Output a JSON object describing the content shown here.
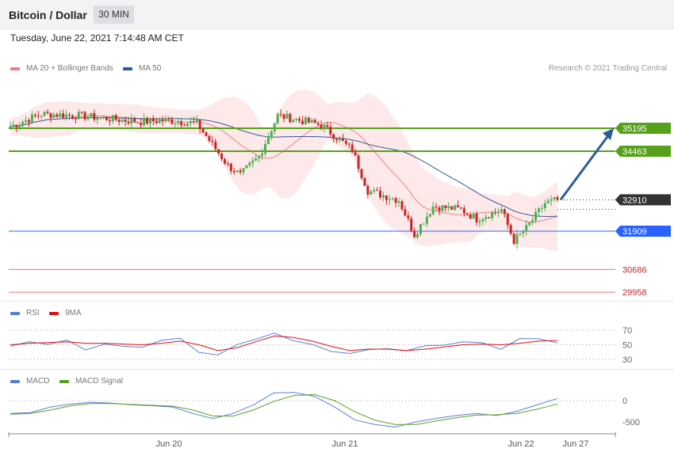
{
  "header": {
    "title": "Bitcoin / Dollar",
    "interval": "30 MIN"
  },
  "timestamp": "Tuesday, June 22, 2021 7:14:48 AM CET",
  "credit": "Research © 2021 Trading Central",
  "legend_main": [
    {
      "label": "MA 20 + Bollinger Bands",
      "color": "#f08080"
    },
    {
      "label": "MA 50",
      "color": "#2d5b9a"
    }
  ],
  "legend_rsi": [
    {
      "label": "RSI",
      "color": "#5b7fd6"
    },
    {
      "label": "9MA",
      "color": "#dd1111"
    }
  ],
  "legend_macd": [
    {
      "label": "MACD",
      "color": "#5b7fd6"
    },
    {
      "label": "MACD Signal",
      "color": "#5aa020"
    }
  ],
  "colors": {
    "up": "#4caf50",
    "down": "#c62828",
    "resistance": "#56a01a",
    "support": "#2962ff",
    "red_level": "#e57373",
    "last": "#333333",
    "arrow": "#2d5b9a"
  },
  "chart_data": [
    {
      "type": "candlestick",
      "title": "Bitcoin / Dollar",
      "interval": "30 MIN",
      "x_ticks": [
        "Jun 20",
        "Jun 21",
        "Jun 22",
        "Jun 27"
      ],
      "ylim": [
        29700,
        35900
      ],
      "levels": [
        {
          "value": 35195,
          "label": "35195",
          "kind": "resistance"
        },
        {
          "value": 34463,
          "label": "34463",
          "kind": "resistance"
        },
        {
          "value": 32910,
          "label": "32910",
          "kind": "last"
        },
        {
          "value": 31909,
          "label": "31909",
          "kind": "support"
        },
        {
          "value": 30686,
          "label": "30686",
          "kind": "red"
        },
        {
          "value": 29958,
          "label": "29958",
          "kind": "red"
        }
      ],
      "forecast_target": 35195,
      "close_path": [
        {
          "t": 0,
          "v": 35250
        },
        {
          "t": 10,
          "v": 35650
        },
        {
          "t": 22,
          "v": 35600
        },
        {
          "t": 32,
          "v": 35500
        },
        {
          "t": 42,
          "v": 35400
        },
        {
          "t": 50,
          "v": 35450
        },
        {
          "t": 60,
          "v": 35350
        },
        {
          "t": 70,
          "v": 34000
        },
        {
          "t": 74,
          "v": 33700
        },
        {
          "t": 80,
          "v": 34300
        },
        {
          "t": 86,
          "v": 35600
        },
        {
          "t": 100,
          "v": 35300
        },
        {
          "t": 110,
          "v": 34500
        },
        {
          "t": 115,
          "v": 33200
        },
        {
          "t": 125,
          "v": 32900
        },
        {
          "t": 130,
          "v": 31800
        },
        {
          "t": 136,
          "v": 32700
        },
        {
          "t": 145,
          "v": 32600
        },
        {
          "t": 150,
          "v": 32300
        },
        {
          "t": 158,
          "v": 32600
        },
        {
          "t": 162,
          "v": 31600
        },
        {
          "t": 166,
          "v": 32000
        },
        {
          "t": 172,
          "v": 32800
        },
        {
          "t": 176,
          "v": 32910
        }
      ]
    },
    {
      "type": "line",
      "title": "RSI",
      "ylim": [
        25,
        80
      ],
      "y_ticks": [
        70,
        50,
        30
      ],
      "series": [
        {
          "name": "RSI",
          "values": [
            50,
            55,
            52,
            58,
            45,
            53,
            50,
            48,
            56,
            60,
            42,
            35,
            52,
            60,
            68,
            58,
            50,
            42,
            38,
            46,
            44,
            40,
            46,
            50,
            54,
            52,
            46,
            56,
            58,
            54
          ]
        },
        {
          "name": "9MA",
          "values": [
            50,
            52,
            53,
            54,
            52,
            52,
            51,
            50,
            52,
            55,
            50,
            42,
            46,
            54,
            62,
            60,
            55,
            48,
            42,
            44,
            44,
            42,
            44,
            47,
            50,
            51,
            50,
            52,
            55,
            56
          ]
        }
      ]
    },
    {
      "type": "line",
      "title": "MACD",
      "ylim": [
        -800,
        300
      ],
      "y_ticks": [
        0,
        -500
      ],
      "series": [
        {
          "name": "MACD",
          "values": [
            -300,
            -280,
            -150,
            -80,
            -40,
            -60,
            -100,
            -120,
            -150,
            -300,
            -420,
            -300,
            -100,
            180,
            190,
            100,
            -150,
            -450,
            -560,
            -620,
            -500,
            -420,
            -350,
            -300,
            -350,
            -250,
            -100,
            50
          ]
        },
        {
          "name": "MACD Signal",
          "values": [
            -320,
            -300,
            -220,
            -120,
            -70,
            -70,
            -90,
            -110,
            -130,
            -220,
            -360,
            -360,
            -220,
            -20,
            120,
            140,
            0,
            -260,
            -460,
            -560,
            -560,
            -480,
            -400,
            -340,
            -330,
            -300,
            -200,
            -80
          ]
        }
      ]
    }
  ]
}
